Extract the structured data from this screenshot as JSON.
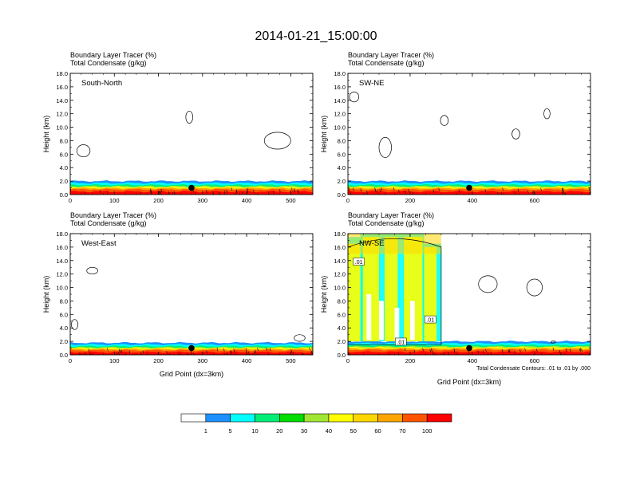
{
  "title": "2014-01-21_15:00:00",
  "chart_data": [
    {
      "type": "area",
      "panel_label": "South-North",
      "header": [
        "Boundary Layer Tracer   (%)",
        "Total Condensate   (g/kg)"
      ],
      "ylabel": "Height (km)",
      "xlabel": "",
      "xlim": [
        0,
        550
      ],
      "ylim": [
        0,
        18
      ],
      "xticks": [
        0,
        100,
        200,
        300,
        400,
        500
      ],
      "yticks": [
        "0.0",
        "2.0",
        "4.0",
        "6.0",
        "8.0",
        "10.0",
        "12.0",
        "14.0",
        "16.0",
        "18.0"
      ],
      "marker_x": 275,
      "marker_y": 1.0,
      "tracer_top_km": 2.0,
      "spots": [],
      "contour_labels": []
    },
    {
      "type": "area",
      "panel_label": "SW-NE",
      "header": [
        "Boundary Layer Tracer   (%)",
        "Total Condensate   (g/kg)"
      ],
      "ylabel": "Height (km)",
      "xlabel": "",
      "xlim": [
        0,
        780
      ],
      "ylim": [
        0,
        18
      ],
      "xticks": [
        0,
        200,
        400,
        600
      ],
      "yticks": [
        "0.0",
        "2.0",
        "4.0",
        "6.0",
        "8.0",
        "10.0",
        "12.0",
        "14.0",
        "16.0",
        "18.0"
      ],
      "marker_x": 390,
      "marker_y": 1.0,
      "tracer_top_km": 2.0,
      "spots": [],
      "contour_labels": []
    },
    {
      "type": "area",
      "panel_label": "West-East",
      "header": [
        "Boundary Layer Tracer   (%)",
        "Total Condensate   (g/kg)"
      ],
      "ylabel": "Height (km)",
      "xlabel": "Grid Point (dx=3km)",
      "xlim": [
        0,
        550
      ],
      "ylim": [
        0,
        18
      ],
      "xticks": [
        0,
        100,
        200,
        300,
        400,
        500
      ],
      "yticks": [
        "0.0",
        "2.0",
        "4.0",
        "6.0",
        "8.0",
        "10.0",
        "12.0",
        "14.0",
        "16.0",
        "18.0"
      ],
      "marker_x": 275,
      "marker_y": 1.0,
      "tracer_top_km": 1.8,
      "spots": [],
      "contour_labels": []
    },
    {
      "type": "area",
      "panel_label": "NW-SE",
      "header": [
        "Boundary Layer Tracer   (%)",
        "Total Condensate   (g/kg)"
      ],
      "ylabel": "Height (km)",
      "xlabel": "Grid Point (dx=3km)",
      "footnote": "Total Condensate Contours: .01 to .01 by .000",
      "xlim": [
        0,
        780
      ],
      "ylim": [
        0,
        18
      ],
      "xticks": [
        0,
        200,
        400,
        600
      ],
      "yticks": [
        "0.0",
        "2.0",
        "4.0",
        "6.0",
        "8.0",
        "10.0",
        "12.0",
        "14.0",
        "16.0",
        "18.0"
      ],
      "marker_x": 390,
      "marker_y": 1.0,
      "tracer_top_km": 2.0,
      "spots": [],
      "contour_labels": [
        ".01",
        ".01",
        ".01"
      ],
      "convection": {
        "x_start": 0,
        "x_end": 300,
        "top_km": 18
      }
    }
  ],
  "colorbar": {
    "labels": [
      "1",
      "5",
      "10",
      "20",
      "30",
      "40",
      "50",
      "60",
      "70",
      "100"
    ],
    "colors": [
      "#ffffff",
      "#1e90ff",
      "#00ffff",
      "#00ee76",
      "#00dd00",
      "#a0e632",
      "#ffff00",
      "#ffd700",
      "#ffa500",
      "#ff5500",
      "#ff0000"
    ]
  }
}
